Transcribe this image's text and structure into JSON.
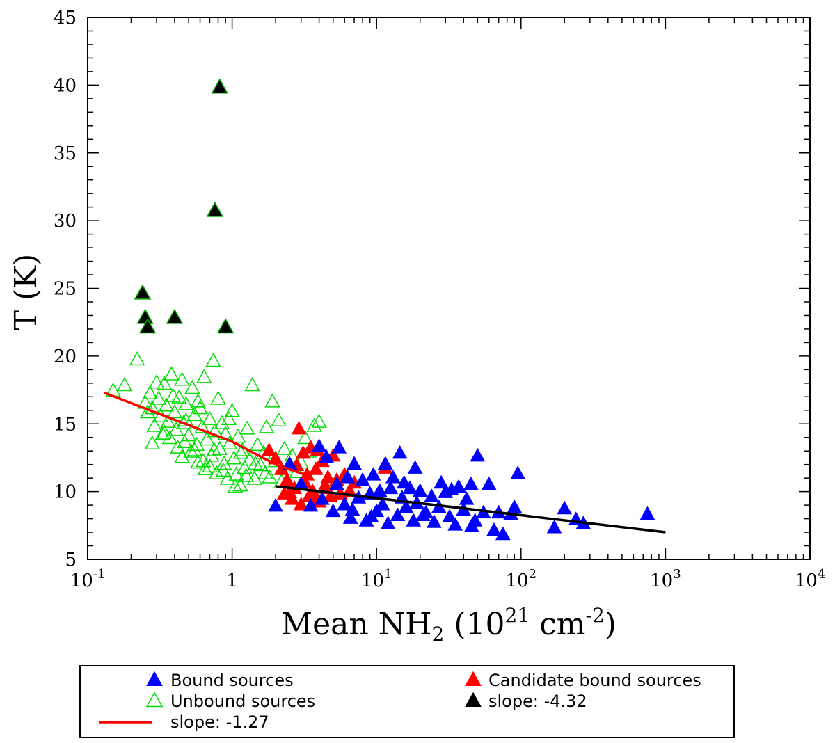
{
  "chart_data": {
    "type": "scatter",
    "xscale": "log",
    "xlim": [
      0.1,
      10000
    ],
    "ylim": [
      5,
      45
    ],
    "xlabel": {
      "main": "Mean NH",
      "sub": "2",
      "open": " (10",
      "sup1": "21",
      "mid": " cm",
      "sup2": "-2",
      "close": ")"
    },
    "ylabel": "T (K)",
    "x_ticks": [
      {
        "value": 0.1,
        "base": "10",
        "exp": "-1"
      },
      {
        "value": 1,
        "base": "1",
        "exp": ""
      },
      {
        "value": 10,
        "base": "10",
        "exp": "1"
      },
      {
        "value": 100,
        "base": "10",
        "exp": "2"
      },
      {
        "value": 1000,
        "base": "10",
        "exp": "3"
      },
      {
        "value": 10000,
        "base": "10",
        "exp": "4"
      }
    ],
    "y_ticks": [
      "5",
      "10",
      "15",
      "20",
      "25",
      "30",
      "35",
      "40",
      "45"
    ],
    "series": [
      {
        "name": "Unbound sources",
        "marker": "open-triangle",
        "color": "#00dd00",
        "points": [
          [
            0.15,
            17.4
          ],
          [
            0.18,
            17.8
          ],
          [
            0.22,
            19.7
          ],
          [
            0.25,
            16.5
          ],
          [
            0.26,
            15.8
          ],
          [
            0.27,
            17.2
          ],
          [
            0.28,
            16.1
          ],
          [
            0.29,
            14.8
          ],
          [
            0.3,
            18.0
          ],
          [
            0.31,
            16.8
          ],
          [
            0.32,
            15.5
          ],
          [
            0.33,
            14.2
          ],
          [
            0.34,
            17.9
          ],
          [
            0.35,
            16.3
          ],
          [
            0.36,
            15.1
          ],
          [
            0.37,
            13.9
          ],
          [
            0.38,
            18.6
          ],
          [
            0.39,
            17.0
          ],
          [
            0.4,
            15.8
          ],
          [
            0.41,
            14.5
          ],
          [
            0.42,
            13.2
          ],
          [
            0.43,
            16.9
          ],
          [
            0.45,
            18.2
          ],
          [
            0.46,
            15.0
          ],
          [
            0.47,
            13.6
          ],
          [
            0.48,
            16.4
          ],
          [
            0.5,
            14.1
          ],
          [
            0.52,
            12.9
          ],
          [
            0.53,
            17.6
          ],
          [
            0.55,
            15.6
          ],
          [
            0.57,
            13.4
          ],
          [
            0.58,
            12.1
          ],
          [
            0.6,
            16.1
          ],
          [
            0.62,
            14.7
          ],
          [
            0.64,
            18.4
          ],
          [
            0.65,
            11.6
          ],
          [
            0.67,
            13.8
          ],
          [
            0.7,
            15.3
          ],
          [
            0.72,
            12.6
          ],
          [
            0.74,
            19.6
          ],
          [
            0.76,
            14.4
          ],
          [
            0.78,
            11.3
          ],
          [
            0.8,
            16.8
          ],
          [
            0.82,
            13.1
          ],
          [
            0.85,
            15.0
          ],
          [
            0.88,
            12.0
          ],
          [
            0.9,
            14.2
          ],
          [
            0.93,
            10.9
          ],
          [
            0.96,
            13.5
          ],
          [
            1.0,
            15.9
          ],
          [
            1.03,
            12.4
          ],
          [
            1.07,
            11.2
          ],
          [
            1.1,
            14.0
          ],
          [
            1.14,
            10.4
          ],
          [
            1.18,
            13.0
          ],
          [
            1.22,
            11.7
          ],
          [
            1.27,
            14.6
          ],
          [
            1.32,
            12.3
          ],
          [
            1.38,
            17.8
          ],
          [
            1.43,
            10.9
          ],
          [
            1.5,
            13.4
          ],
          [
            1.57,
            11.9
          ],
          [
            1.65,
            12.8
          ],
          [
            1.73,
            14.7
          ],
          [
            1.82,
            11.0
          ],
          [
            1.9,
            16.6
          ],
          [
            2.0,
            12.2
          ],
          [
            2.1,
            15.2
          ],
          [
            2.2,
            10.7
          ],
          [
            2.3,
            13.1
          ],
          [
            2.45,
            11.8
          ],
          [
            2.6,
            12.6
          ],
          [
            2.8,
            11.4
          ],
          [
            3.0,
            12.1
          ],
          [
            3.2,
            13.9
          ],
          [
            3.4,
            12.9
          ],
          [
            3.7,
            14.8
          ],
          [
            4.0,
            15.1
          ],
          [
            0.28,
            13.5
          ],
          [
            0.45,
            12.5
          ],
          [
            0.55,
            13.0
          ],
          [
            0.63,
            12.2
          ],
          [
            0.7,
            11.8
          ],
          [
            0.87,
            11.5
          ],
          [
            1.05,
            10.3
          ],
          [
            1.25,
            11.1
          ],
          [
            1.45,
            12.0
          ],
          [
            1.7,
            11.3
          ],
          [
            0.95,
            15.3
          ],
          [
            0.58,
            16.6
          ],
          [
            0.34,
            14.3
          ],
          [
            0.48,
            15.2
          ],
          [
            0.75,
            13.0
          ],
          [
            1.15,
            12.8
          ]
        ]
      },
      {
        "name": "Candidate bound sources",
        "marker": "filled-triangle",
        "color": "#ff0000",
        "points": [
          [
            1.8,
            13.0
          ],
          [
            2.0,
            12.4
          ],
          [
            2.2,
            11.6
          ],
          [
            2.4,
            10.8
          ],
          [
            2.6,
            9.4
          ],
          [
            2.7,
            10.2
          ],
          [
            2.8,
            11.9
          ],
          [
            2.9,
            14.6
          ],
          [
            3.0,
            9.0
          ],
          [
            3.1,
            12.8
          ],
          [
            3.2,
            10.6
          ],
          [
            3.3,
            11.2
          ],
          [
            3.4,
            9.6
          ],
          [
            3.5,
            13.2
          ],
          [
            3.6,
            10.0
          ],
          [
            3.8,
            11.6
          ],
          [
            4.0,
            9.2
          ],
          [
            4.2,
            12.2
          ],
          [
            4.4,
            10.4
          ],
          [
            4.6,
            11.0
          ],
          [
            4.8,
            9.6
          ],
          [
            5.0,
            12.6
          ],
          [
            5.3,
            10.8
          ],
          [
            5.6,
            9.8
          ],
          [
            6.0,
            11.2
          ],
          [
            6.5,
            10.0
          ],
          [
            7.0,
            10.6
          ],
          [
            11.5,
            11.7
          ],
          [
            2.5,
            9.9
          ],
          [
            3.9,
            13.0
          ],
          [
            4.5,
            10.2
          ],
          [
            2.3,
            9.8
          ],
          [
            3.7,
            9.4
          ]
        ]
      },
      {
        "name": "Bound sources",
        "marker": "filled-triangle",
        "color": "#0000ff",
        "points": [
          [
            2.0,
            8.9
          ],
          [
            2.5,
            12.0
          ],
          [
            3.0,
            10.5
          ],
          [
            3.5,
            8.9
          ],
          [
            4.0,
            13.3
          ],
          [
            4.2,
            9.4
          ],
          [
            4.5,
            12.5
          ],
          [
            5.0,
            8.5
          ],
          [
            5.3,
            10.5
          ],
          [
            5.5,
            13.2
          ],
          [
            6.0,
            9.0
          ],
          [
            6.3,
            11.0
          ],
          [
            6.6,
            8.0
          ],
          [
            7.0,
            12.0
          ],
          [
            7.5,
            9.5
          ],
          [
            8.0,
            10.8
          ],
          [
            8.5,
            7.8
          ],
          [
            9.0,
            9.8
          ],
          [
            9.5,
            11.2
          ],
          [
            10.0,
            8.5
          ],
          [
            10.5,
            10.0
          ],
          [
            11.0,
            9.0
          ],
          [
            12.0,
            7.6
          ],
          [
            12.5,
            10.2
          ],
          [
            13.0,
            11.0
          ],
          [
            14.0,
            8.2
          ],
          [
            14.5,
            12.8
          ],
          [
            15.0,
            9.5
          ],
          [
            16.0,
            8.8
          ],
          [
            17.0,
            10.2
          ],
          [
            18.0,
            7.8
          ],
          [
            19.0,
            9.1
          ],
          [
            20.0,
            10.0
          ],
          [
            22.0,
            8.4
          ],
          [
            24.0,
            9.6
          ],
          [
            25.0,
            7.7
          ],
          [
            27.0,
            8.8
          ],
          [
            30.0,
            9.9
          ],
          [
            32.0,
            8.1
          ],
          [
            35.0,
            7.5
          ],
          [
            37.0,
            10.3
          ],
          [
            40.0,
            8.6
          ],
          [
            42.0,
            9.4
          ],
          [
            45.0,
            10.5
          ],
          [
            48.0,
            7.8
          ],
          [
            50.0,
            12.6
          ],
          [
            55.0,
            8.4
          ],
          [
            60.0,
            10.5
          ],
          [
            65.0,
            7.1
          ],
          [
            70.0,
            8.4
          ],
          [
            75.0,
            6.8
          ],
          [
            85.0,
            8.3
          ],
          [
            90.0,
            8.8
          ],
          [
            95.0,
            11.3
          ],
          [
            170.0,
            7.3
          ],
          [
            200.0,
            8.7
          ],
          [
            240.0,
            7.9
          ],
          [
            270.0,
            7.6
          ],
          [
            750.0,
            8.3
          ],
          [
            18.5,
            11.7
          ],
          [
            28.0,
            10.6
          ],
          [
            11.5,
            12.0
          ],
          [
            9.2,
            8.1
          ],
          [
            21.0,
            8.2
          ],
          [
            33.0,
            10.1
          ],
          [
            6.8,
            8.6
          ],
          [
            15.5,
            10.6
          ],
          [
            45.5,
            7.4
          ]
        ]
      },
      {
        "name": "slope: -4.32",
        "marker": "filled-triangle",
        "color": "#000000",
        "points": [
          [
            0.24,
            24.6
          ],
          [
            0.25,
            22.8
          ],
          [
            0.26,
            22.1
          ],
          [
            0.4,
            22.8
          ],
          [
            0.76,
            30.7
          ],
          [
            0.82,
            39.8
          ],
          [
            0.9,
            22.1
          ]
        ]
      }
    ],
    "fit_lines": [
      {
        "name": "slope: -1.27",
        "color": "#ff0000",
        "points": [
          [
            0.13,
            17.3
          ],
          [
            0.4,
            15.3
          ],
          [
            1.0,
            13.7
          ],
          [
            2.0,
            12.0
          ],
          [
            3.3,
            11.2
          ]
        ]
      },
      {
        "name": "black-fit",
        "color": "#000000",
        "points": [
          [
            2.0,
            10.4
          ],
          [
            1000,
            7.0
          ]
        ]
      }
    ],
    "legend": {
      "placement": "bottom",
      "entries": [
        {
          "label": "Bound sources",
          "marker": "filled-triangle",
          "color": "#0000ff"
        },
        {
          "label": "Candidate bound sources",
          "marker": "filled-triangle",
          "color": "#ff0000"
        },
        {
          "label": "Unbound sources",
          "marker": "open-triangle",
          "color": "#00dd00"
        },
        {
          "label": "slope: -4.32",
          "marker": "filled-triangle",
          "color": "#000000"
        },
        {
          "label": "slope: -1.27",
          "marker": "line",
          "color": "#ff0000"
        }
      ]
    }
  }
}
